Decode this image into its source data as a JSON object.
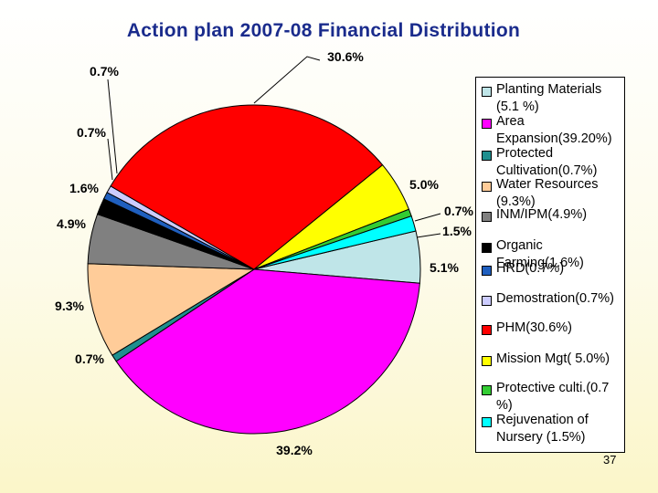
{
  "title": "Action plan 2007-08  Financial Distribution",
  "page_number": "37",
  "chart_data": {
    "type": "pie",
    "title": "Action plan 2007-08  Financial Distribution",
    "slices": [
      {
        "name": "Planting Materials\n(5.1 %)",
        "value": 5.1,
        "label": "5.1%",
        "color": "#bfe5e8"
      },
      {
        "name": "Area\nExpansion(39.20%)",
        "value": 39.2,
        "label": "39.2%",
        "color": "#ff00ff"
      },
      {
        "name": "Protected\nCultivation(0.7%)",
        "value": 0.7,
        "label": "0.7%",
        "color": "#1f8f8f"
      },
      {
        "name": "Water Resources\n(9.3%)",
        "value": 9.3,
        "label": "9.3%",
        "color": "#ffcc99"
      },
      {
        "name": "INM/IPM(4.9%)",
        "value": 4.9,
        "label": "4.9%",
        "color": "#808080"
      },
      {
        "name": "Organic\nFarming(1.6%)",
        "value": 1.6,
        "label": "1.6%",
        "color": "#000000"
      },
      {
        "name": "HRD(0.7%)",
        "value": 0.7,
        "label": "0.7%",
        "color": "#1f5fbf"
      },
      {
        "name": "Demostration(0.7%)",
        "value": 0.7,
        "label": "0.7%",
        "color": "#ccccff"
      },
      {
        "name": "PHM(30.6%)",
        "value": 30.6,
        "label": "30.6%",
        "color": "#ff0000"
      },
      {
        "name": "Mission Mgt( 5.0%)",
        "value": 5.0,
        "label": "5.0%",
        "color": "#ffff00"
      },
      {
        "name": "Protective culti.(0.7\n%)",
        "value": 0.7,
        "label": "0.7%",
        "color": "#33cc33"
      },
      {
        "name": "Rejuvenation of\nNursery (1.5%)",
        "value": 1.5,
        "label": "1.5%",
        "color": "#00ffff"
      }
    ],
    "legend_position": "right"
  }
}
